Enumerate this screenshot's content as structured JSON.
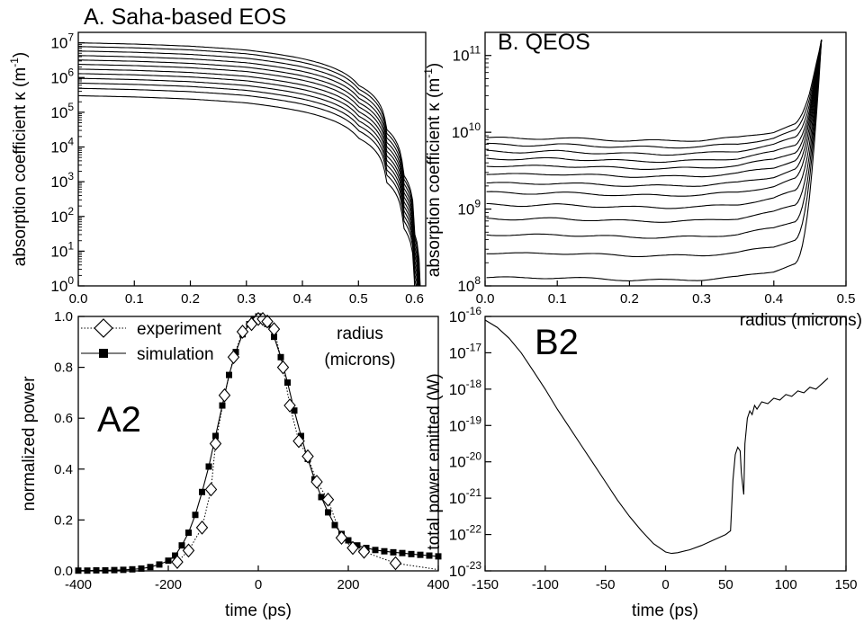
{
  "chart_data": [
    {
      "id": "A",
      "type": "line",
      "title": "A. Saha-based EOS",
      "xlabel": "radius\n(microns)",
      "ylabel_main": "absorption coefficient κ (m",
      "ylabel_sup": "-1",
      "ylabel_end": ")",
      "xlim": [
        0,
        0.62
      ],
      "ylim": [
        1,
        20000000
      ],
      "yscale": "log",
      "x_ticks": [
        "0.0",
        "0.1",
        "0.2",
        "0.3",
        "0.4",
        "0.5",
        "0.6"
      ],
      "x_tick_values": [
        0,
        0.1,
        0.2,
        0.3,
        0.4,
        0.5,
        0.6
      ],
      "y_tick_exponents": [
        0,
        1,
        2,
        3,
        4,
        5,
        6,
        7
      ],
      "curve_start_values": [
        10000000,
        7800000,
        5800000,
        4300000,
        3200000,
        2400000,
        1750000,
        1300000,
        950000,
        690000,
        490000,
        300000
      ],
      "curve_shape": {
        "x": [
          0,
          0.1,
          0.2,
          0.3,
          0.4,
          0.5,
          0.55,
          0.58,
          0.6,
          0.61
        ],
        "factor": [
          1,
          0.92,
          0.8,
          0.62,
          0.35,
          0.06,
          0.0032,
          0.00016,
          3.2e-06,
          2e-08
        ]
      }
    },
    {
      "id": "B",
      "type": "line",
      "title": "B. QEOS",
      "xlabel": "radius (microns)",
      "ylabel_main": "absorption coefficient κ (m",
      "ylabel_sup": "-1",
      "ylabel_end": ")",
      "xlim": [
        0,
        0.5
      ],
      "ylim": [
        100000000,
        200000000000
      ],
      "yscale": "log",
      "x_ticks": [
        "0.0",
        "0.1",
        "0.2",
        "0.3",
        "0.4",
        "0.5"
      ],
      "x_tick_values": [
        0,
        0.1,
        0.2,
        0.3,
        0.4,
        0.5
      ],
      "y_tick_exponents": [
        8,
        9,
        10,
        11
      ],
      "curve_start_values": [
        8500000000,
        7000000000,
        5700000000,
        4600000000,
        3700000000,
        2900000000,
        2200000000,
        1650000000,
        1150000000,
        760000000,
        470000000,
        270000000,
        130000000
      ],
      "curve_shape": {
        "x": [
          0,
          0.05,
          0.1,
          0.15,
          0.2,
          0.25,
          0.3,
          0.35,
          0.4,
          0.43,
          0.45,
          0.46
        ],
        "factor": [
          1,
          0.97,
          0.99,
          0.95,
          0.92,
          0.91,
          0.93,
          1.0,
          1.2,
          1.5,
          2.1,
          3.0
        ]
      },
      "converge_x": 0.466,
      "converge_y": 160000000000
    },
    {
      "id": "A2",
      "type": "line",
      "label": "A2",
      "xlabel": "time (ps)",
      "ylabel": "normalized power",
      "xlim": [
        -400,
        400
      ],
      "ylim": [
        0,
        1.0
      ],
      "x_ticks": [
        "-400",
        "-200",
        "0",
        "200",
        "400"
      ],
      "x_tick_values": [
        -400,
        -200,
        0,
        200,
        400
      ],
      "y_ticks": [
        "0.0",
        "0.2",
        "0.4",
        "0.6",
        "0.8",
        "1.0"
      ],
      "y_tick_values": [
        0,
        0.2,
        0.4,
        0.6,
        0.8,
        1.0
      ],
      "legend": [
        "experiment",
        "simulation"
      ],
      "series": [
        {
          "name": "experiment",
          "marker": "diamond",
          "x": [
            -180,
            -155,
            -125,
            -105,
            -95,
            -75,
            -55,
            -35,
            -15,
            0,
            10,
            20,
            35,
            55,
            70,
            90,
            110,
            130,
            155,
            185,
            210,
            235,
            305,
            400
          ],
          "y": [
            0.035,
            0.08,
            0.17,
            0.32,
            0.5,
            0.69,
            0.84,
            0.94,
            0.97,
            0.99,
            0.99,
            0.98,
            0.95,
            0.8,
            0.65,
            0.51,
            0.45,
            0.35,
            0.28,
            0.13,
            0.09,
            0.075,
            0.03,
            0.005
          ]
        },
        {
          "name": "simulation",
          "marker": "square",
          "x": [
            -400,
            -380,
            -360,
            -340,
            -320,
            -300,
            -280,
            -260,
            -240,
            -220,
            -200,
            -185,
            -170,
            -155,
            -140,
            -125,
            -110,
            -95,
            -80,
            -65,
            -50,
            -35,
            -20,
            -10,
            0,
            10,
            20,
            35,
            50,
            65,
            80,
            95,
            110,
            125,
            140,
            155,
            170,
            185,
            200,
            220,
            240,
            260,
            280,
            300,
            320,
            340,
            360,
            380,
            400
          ],
          "y": [
            0.001,
            0.001,
            0.002,
            0.002,
            0.003,
            0.004,
            0.006,
            0.009,
            0.015,
            0.025,
            0.04,
            0.06,
            0.1,
            0.15,
            0.22,
            0.31,
            0.41,
            0.53,
            0.65,
            0.77,
            0.86,
            0.93,
            0.97,
            0.99,
            1.0,
            0.99,
            0.97,
            0.92,
            0.84,
            0.74,
            0.63,
            0.53,
            0.44,
            0.36,
            0.29,
            0.23,
            0.18,
            0.145,
            0.12,
            0.1,
            0.09,
            0.082,
            0.077,
            0.073,
            0.07,
            0.066,
            0.063,
            0.06,
            0.057
          ]
        }
      ]
    },
    {
      "id": "B2",
      "type": "line",
      "label": "B2",
      "xlabel": "time (ps)",
      "ylabel": "total power emitted (W)",
      "xlim": [
        -150,
        150
      ],
      "ylim": [
        1e-23,
        1e-16
      ],
      "yscale": "log",
      "x_ticks": [
        "-150",
        "-100",
        "-50",
        "0",
        "50",
        "100",
        "150"
      ],
      "x_tick_values": [
        -150,
        -100,
        -50,
        0,
        50,
        100,
        150
      ],
      "y_tick_exponents": [
        -23,
        -22,
        -21,
        -20,
        -19,
        -18,
        -17,
        -16
      ],
      "series": [
        {
          "name": "",
          "x": [
            -150,
            -140,
            -130,
            -120,
            -110,
            -100,
            -90,
            -80,
            -70,
            -60,
            -50,
            -40,
            -30,
            -20,
            -10,
            0,
            5,
            10,
            20,
            30,
            40,
            50,
            54,
            56,
            58,
            60,
            62,
            63,
            64,
            65,
            66,
            68,
            70,
            72,
            74,
            76,
            80,
            85,
            90,
            95,
            100,
            105,
            110,
            115,
            120,
            125,
            130,
            135
          ],
          "y_exp": [
            -16.1,
            -16.3,
            -16.6,
            -17.0,
            -17.5,
            -18.0,
            -18.55,
            -19.05,
            -19.55,
            -20.05,
            -20.55,
            -21.05,
            -21.5,
            -21.9,
            -22.25,
            -22.48,
            -22.52,
            -22.5,
            -22.42,
            -22.3,
            -22.15,
            -22.0,
            -21.9,
            -20.5,
            -19.8,
            -19.6,
            -19.7,
            -20.3,
            -20.6,
            -20.9,
            -19.5,
            -18.8,
            -18.6,
            -18.7,
            -18.45,
            -18.55,
            -18.35,
            -18.4,
            -18.25,
            -18.3,
            -18.15,
            -18.2,
            -18.05,
            -18.1,
            -17.95,
            -18.0,
            -17.85,
            -17.7
          ]
        }
      ]
    }
  ]
}
